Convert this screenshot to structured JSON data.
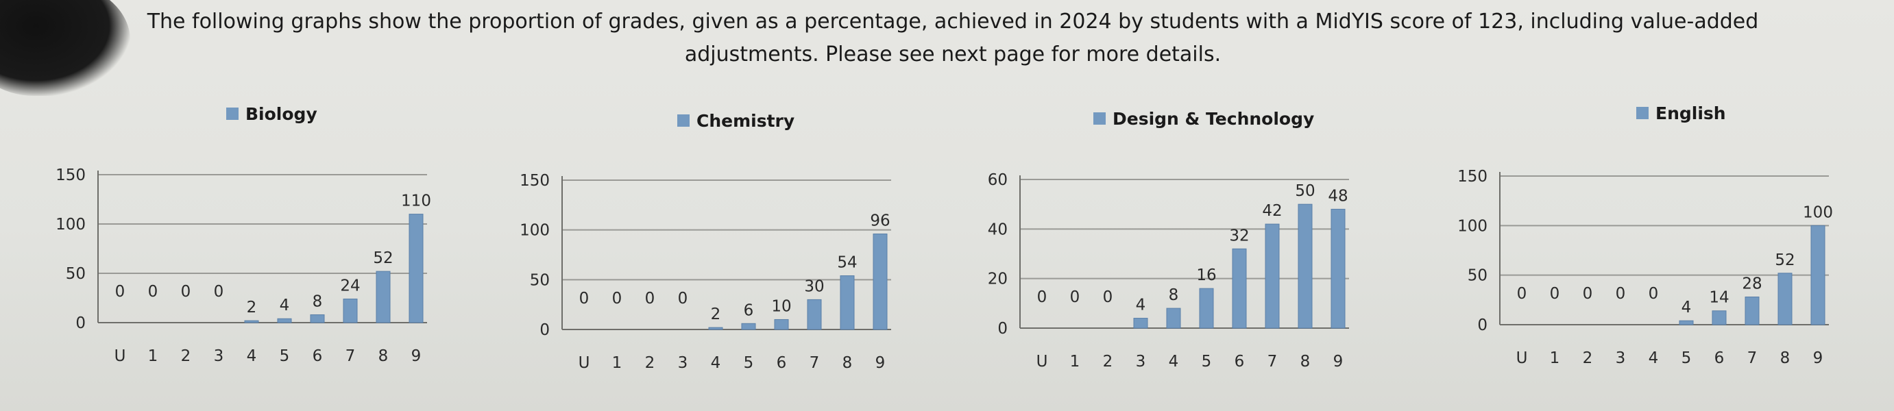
{
  "header": {
    "line1": "The following graphs show the proportion of grades, given as a percentage, achieved in 2024 by students with a MidYIS score of 123, including value-added",
    "line2": "adjustments. Please see next page for more details."
  },
  "colors": {
    "bar": "#7399c0",
    "bar_edge": "#5b80a8",
    "grid": "#9a9a96",
    "axis": "#6e6e6a"
  },
  "chart_data": [
    {
      "type": "bar",
      "legend": "Biology",
      "categories": [
        "U",
        "1",
        "2",
        "3",
        "4",
        "5",
        "6",
        "7",
        "8",
        "9"
      ],
      "values": [
        0,
        0,
        0,
        0,
        2,
        4,
        8,
        24,
        52,
        110
      ],
      "yticks": [
        0,
        50,
        100,
        150
      ],
      "ylim": [
        0,
        150
      ],
      "grid": true
    },
    {
      "type": "bar",
      "legend": "Chemistry",
      "categories": [
        "U",
        "1",
        "2",
        "3",
        "4",
        "5",
        "6",
        "7",
        "8",
        "9"
      ],
      "values": [
        0,
        0,
        0,
        0,
        2,
        6,
        10,
        30,
        54,
        96
      ],
      "yticks": [
        0,
        50,
        100,
        150
      ],
      "ylim": [
        0,
        150
      ],
      "grid": true
    },
    {
      "type": "bar",
      "legend": "Design & Technology",
      "categories": [
        "U",
        "1",
        "2",
        "3",
        "4",
        "5",
        "6",
        "7",
        "8",
        "9"
      ],
      "values": [
        0,
        0,
        0,
        4,
        8,
        16,
        32,
        42,
        50,
        48
      ],
      "yticks": [
        0,
        20,
        40,
        60
      ],
      "ylim": [
        0,
        60
      ],
      "grid": true
    },
    {
      "type": "bar",
      "legend": "English",
      "categories": [
        "U",
        "1",
        "2",
        "3",
        "4",
        "5",
        "6",
        "7",
        "8",
        "9"
      ],
      "values": [
        0,
        0,
        0,
        0,
        0,
        4,
        14,
        28,
        52,
        100
      ],
      "yticks": [
        0,
        50,
        100,
        150
      ],
      "ylim": [
        0,
        150
      ],
      "grid": true
    }
  ]
}
